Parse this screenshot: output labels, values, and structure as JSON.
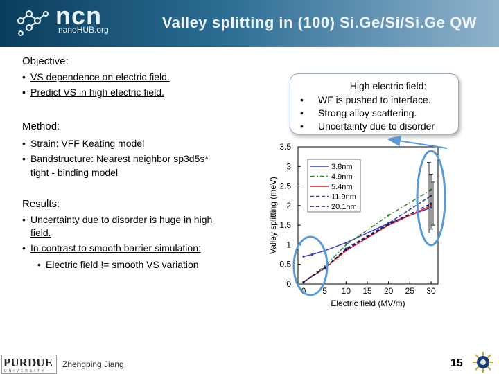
{
  "header": {
    "logo_text": "ncn",
    "logo_sub": "nanoHUB.org",
    "title": "Valley splitting in (100) Si.Ge/Si/Si.Ge QW"
  },
  "objective": {
    "heading": "Objective:",
    "items": [
      "VS dependence on electric field.",
      "Predict VS in high electric field."
    ]
  },
  "method": {
    "heading": "Method:",
    "items": [
      "Strain: VFF Keating model",
      "Bandstructure: Nearest neighbor sp3d5s*",
      "tight - binding model"
    ]
  },
  "results": {
    "heading": "Results:",
    "items": [
      "Uncertainty due to disorder is huge in high",
      "field.",
      "In contrast to smooth barrier simulation:",
      "Electric field != smooth VS variation"
    ]
  },
  "callout": {
    "heading": "High electric field:",
    "items": [
      "WF is pushed to interface.",
      "Strong alloy scattering.",
      "Uncertainty due to disorder"
    ]
  },
  "chart_data": {
    "type": "line",
    "xlabel": "Electric field (MV/m)",
    "ylabel": "Valley splitting (meV)",
    "xlim": [
      0,
      30
    ],
    "ylim": [
      0,
      3.5
    ],
    "xticks": [
      "0",
      "5",
      "10",
      "15",
      "20",
      "25",
      "30"
    ],
    "yticks": [
      "0",
      "0.5",
      "1",
      "1.5",
      "2",
      "2.5",
      "3",
      "3.5"
    ],
    "grid": false,
    "legend_position": "top-left",
    "series": [
      {
        "name": "3.8nm",
        "color": "#3a3acc",
        "dash": "",
        "x": [
          0,
          2,
          5,
          10,
          20,
          30
        ],
        "values": [
          0.7,
          0.75,
          0.85,
          1.05,
          1.55,
          1.95
        ]
      },
      {
        "name": "4.9nm",
        "color": "#2e8b2e",
        "dash": "6,3,2,3",
        "x": [
          0,
          5,
          10,
          20,
          30
        ],
        "values": [
          0.05,
          0.45,
          1.0,
          1.75,
          2.4
        ]
      },
      {
        "name": "5.4nm",
        "color": "#dd2222",
        "dash": "",
        "x": [
          0,
          5,
          10,
          20,
          30
        ],
        "values": [
          0.05,
          0.4,
          0.85,
          1.5,
          2.0
        ]
      },
      {
        "name": "11.9nm",
        "color": "#3a3a99",
        "dash": "5,3",
        "x": [
          0,
          5,
          10,
          20,
          30
        ],
        "values": [
          0.05,
          0.4,
          0.9,
          1.55,
          2.25
        ]
      },
      {
        "name": "20.1nm",
        "color": "#111155",
        "dash": "5,3",
        "x": [
          0,
          5,
          10,
          20,
          30
        ],
        "values": [
          0.05,
          0.42,
          0.88,
          1.52,
          2.05
        ]
      }
    ],
    "error_bars_at_30": [
      [
        1.3,
        3.1
      ],
      [
        1.4,
        2.8
      ],
      [
        1.5,
        2.6
      ]
    ]
  },
  "footer": {
    "logo_text": "PURDUE",
    "logo_sub": "UNIVERSITY",
    "author": "Zhengping Jiang",
    "page_number": "15"
  }
}
